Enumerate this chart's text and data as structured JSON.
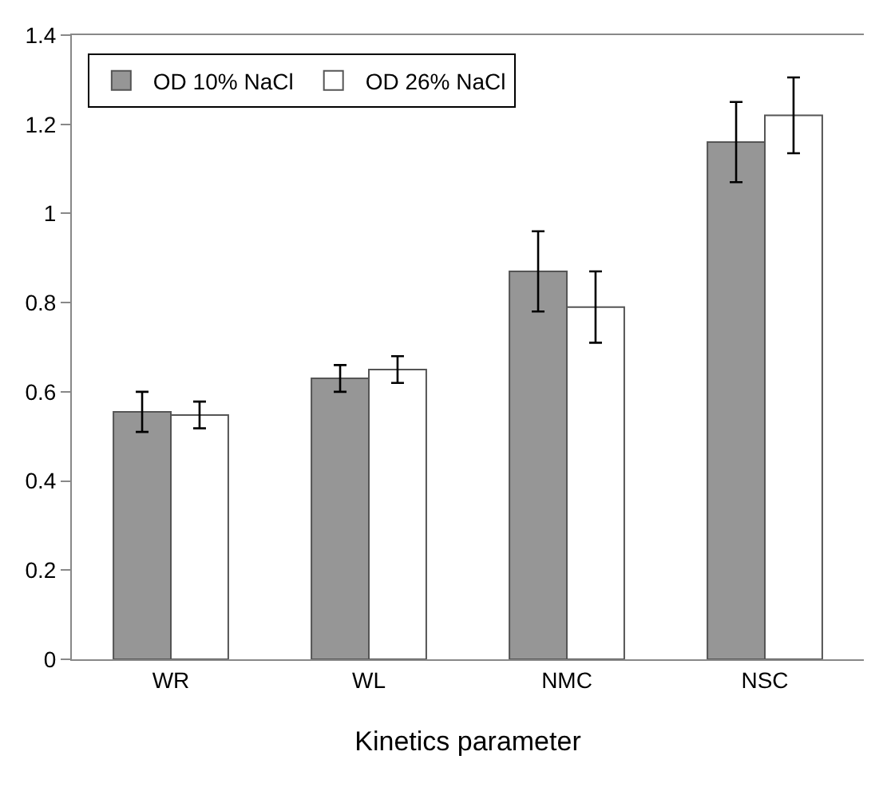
{
  "chart_data": {
    "type": "bar",
    "xlabel": "Kinetics parameter",
    "categories": [
      "WR",
      "WL",
      "NMC",
      "NSC"
    ],
    "series": [
      {
        "name": "OD 10% NaCl",
        "color": "#969696",
        "values": [
          0.555,
          0.63,
          0.87,
          1.16
        ],
        "errors": [
          0.045,
          0.03,
          0.09,
          0.09
        ]
      },
      {
        "name": "OD 26% NaCl",
        "color": "#ffffff",
        "values": [
          0.548,
          0.65,
          0.79,
          1.22
        ],
        "errors": [
          0.03,
          0.03,
          0.08,
          0.085
        ]
      }
    ],
    "ylim": [
      0,
      1.4
    ],
    "yticks": [
      0,
      0.2,
      0.4,
      0.6,
      0.8,
      1,
      1.2,
      1.4
    ],
    "grid": false,
    "legend": "top left"
  }
}
